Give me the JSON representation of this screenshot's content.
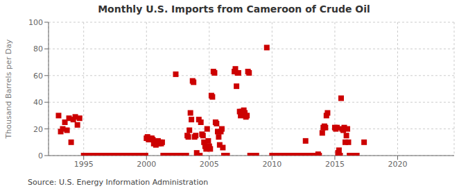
{
  "chart_data": {
    "type": "scatter",
    "title": "Monthly U.S. Imports from Cameroon of Crude Oil",
    "y_label": "Thousand Barrels per Day",
    "annotations": [
      "Source: U.S. Energy Information Administration"
    ],
    "xlim": [
      1992.2,
      2024.5
    ],
    "ylim": [
      0,
      100
    ],
    "xticks": [
      1995,
      2000,
      2005,
      2010,
      2015,
      2020
    ],
    "yticks": [
      0,
      20,
      40,
      60,
      80,
      100
    ],
    "grid": true,
    "color": "#cc0000",
    "marker": "square",
    "x": [
      1993.0,
      1993.17,
      1993.33,
      1993.5,
      1993.67,
      1993.83,
      1994.0,
      1994.17,
      1994.33,
      1994.5,
      1994.67,
      1995.0,
      1995.08,
      1995.17,
      1995.25,
      1995.33,
      1995.42,
      1995.5,
      1995.58,
      1995.67,
      1995.75,
      1995.83,
      1995.92,
      1996.0,
      1996.08,
      1996.17,
      1996.25,
      1996.33,
      1996.42,
      1996.5,
      1996.58,
      1996.67,
      1996.75,
      1996.83,
      1996.92,
      1997.0,
      1997.08,
      1997.17,
      1997.25,
      1997.33,
      1997.42,
      1997.5,
      1997.58,
      1997.67,
      1997.75,
      1997.83,
      1997.92,
      1998.0,
      1998.08,
      1998.17,
      1998.25,
      1998.33,
      1998.42,
      1998.5,
      1998.58,
      1998.67,
      1998.75,
      1998.83,
      1998.92,
      1999.0,
      1999.08,
      1999.17,
      1999.25,
      1999.33,
      1999.42,
      1999.5,
      1999.58,
      1999.67,
      1999.75,
      1999.83,
      1999.92,
      2000.0,
      2000.08,
      2000.17,
      2000.25,
      2000.33,
      2000.42,
      2000.5,
      2000.58,
      2000.67,
      2000.75,
      2000.83,
      2000.92,
      2001.0,
      2001.08,
      2001.17,
      2001.25,
      2001.33,
      2001.42,
      2001.5,
      2001.58,
      2001.67,
      2001.75,
      2001.83,
      2001.92,
      2002.0,
      2002.08,
      2002.17,
      2002.25,
      2002.33,
      2002.42,
      2002.5,
      2002.58,
      2002.67,
      2002.75,
      2002.83,
      2002.92,
      2003.0,
      2003.08,
      2003.17,
      2003.25,
      2003.33,
      2003.42,
      2003.5,
      2003.58,
      2003.67,
      2003.75,
      2003.83,
      2003.92,
      2004.0,
      2004.08,
      2004.17,
      2004.25,
      2004.33,
      2004.42,
      2004.5,
      2004.58,
      2004.67,
      2004.75,
      2004.83,
      2004.92,
      2005.0,
      2005.08,
      2005.17,
      2005.25,
      2005.33,
      2005.42,
      2005.5,
      2005.58,
      2005.67,
      2005.75,
      2005.83,
      2005.92,
      2006.0,
      2006.08,
      2006.17,
      2006.25,
      2006.33,
      2006.42,
      2007.0,
      2007.08,
      2007.17,
      2007.25,
      2007.33,
      2007.42,
      2007.5,
      2007.58,
      2007.67,
      2007.75,
      2007.83,
      2007.92,
      2008.0,
      2008.08,
      2008.17,
      2008.25,
      2008.5,
      2008.58,
      2008.67,
      2008.75,
      2009.58,
      2010.0,
      2010.08,
      2010.17,
      2010.25,
      2010.33,
      2010.42,
      2010.5,
      2010.58,
      2010.67,
      2010.75,
      2010.83,
      2010.92,
      2011.0,
      2011.08,
      2011.17,
      2011.25,
      2011.33,
      2011.42,
      2011.5,
      2011.58,
      2011.67,
      2011.75,
      2011.83,
      2011.92,
      2012.0,
      2012.08,
      2012.17,
      2012.25,
      2012.33,
      2012.42,
      2012.5,
      2012.58,
      2012.67,
      2012.75,
      2013.0,
      2013.08,
      2013.17,
      2013.25,
      2013.33,
      2013.42,
      2013.5,
      2013.58,
      2013.67,
      2013.75,
      2014.0,
      2014.08,
      2014.17,
      2014.25,
      2014.33,
      2014.42,
      2015.0,
      2015.08,
      2015.17,
      2015.25,
      2015.33,
      2015.42,
      2015.5,
      2015.58,
      2015.67,
      2015.75,
      2015.83,
      2015.92,
      2016.0,
      2016.08,
      2016.17,
      2016.25,
      2016.33,
      2016.42,
      2016.5,
      2016.58,
      2016.67,
      2016.75,
      2017.33
    ],
    "values": [
      30,
      18,
      20,
      25,
      19,
      28,
      10,
      27,
      29,
      23,
      28,
      0,
      0,
      0,
      0,
      0,
      0,
      0,
      0,
      0,
      0,
      0,
      0,
      0,
      0,
      0,
      0,
      0,
      0,
      0,
      0,
      0,
      0,
      0,
      0,
      0,
      0,
      0,
      0,
      0,
      0,
      0,
      0,
      0,
      0,
      0,
      0,
      0,
      0,
      0,
      0,
      0,
      0,
      0,
      0,
      0,
      0,
      0,
      0,
      0,
      0,
      0,
      0,
      0,
      0,
      0,
      0,
      0,
      0,
      0,
      0,
      13,
      14,
      12,
      13,
      12,
      13,
      12,
      9,
      10,
      8,
      10,
      11,
      9,
      10,
      9,
      10,
      0,
      0,
      0,
      0,
      0,
      0,
      0,
      0,
      0,
      0,
      0,
      0,
      61,
      0,
      0,
      0,
      0,
      0,
      0,
      0,
      0,
      0,
      0,
      15,
      14,
      19,
      32,
      27,
      56,
      55,
      14,
      15,
      2,
      0,
      27,
      0,
      25,
      16,
      15,
      10,
      7,
      5,
      20,
      11,
      7,
      5,
      45,
      44,
      63,
      62,
      25,
      24,
      18,
      14,
      8,
      18,
      20,
      6,
      0,
      0,
      0,
      0,
      63,
      65,
      52,
      62,
      62,
      33,
      30,
      33,
      31,
      34,
      32,
      29,
      30,
      63,
      62,
      0,
      0,
      0,
      0,
      0,
      81,
      0,
      0,
      0,
      0,
      0,
      0,
      0,
      0,
      0,
      0,
      0,
      0,
      0,
      0,
      0,
      0,
      0,
      0,
      0,
      0,
      0,
      0,
      0,
      0,
      0,
      0,
      0,
      0,
      0,
      0,
      0,
      0,
      11,
      0,
      0,
      0,
      0,
      0,
      0,
      0,
      0,
      0,
      1,
      0,
      17,
      21,
      22,
      21,
      30,
      32,
      21,
      20,
      21,
      2,
      4,
      0,
      43,
      20,
      19,
      21,
      10,
      15,
      20,
      10,
      0,
      0,
      0,
      0,
      0,
      0,
      0,
      0,
      10
    ]
  }
}
